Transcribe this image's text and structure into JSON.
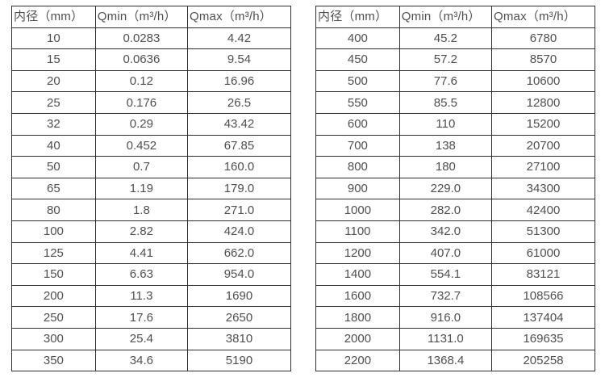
{
  "colors": {
    "background": "#ffffff",
    "border": "#2e2e2e",
    "text": "#4f4f4f"
  },
  "tables": [
    {
      "headers": [
        "内径（mm）",
        "Qmin（m³/h）",
        "Qmax（m³/h）"
      ],
      "rows": [
        [
          "10",
          "0.0283",
          "4.42"
        ],
        [
          "15",
          "0.0636",
          "9.54"
        ],
        [
          "20",
          "0.12",
          "16.96"
        ],
        [
          "25",
          "0.176",
          "26.5"
        ],
        [
          "32",
          "0.29",
          "43.42"
        ],
        [
          "40",
          "0.452",
          "67.85"
        ],
        [
          "50",
          "0.7",
          "160.0"
        ],
        [
          "65",
          "1.19",
          "179.0"
        ],
        [
          "80",
          "1.8",
          "271.0"
        ],
        [
          "100",
          "2.82",
          "424.0"
        ],
        [
          "125",
          "4.41",
          "662.0"
        ],
        [
          "150",
          "6.63",
          "954.0"
        ],
        [
          "200",
          "11.3",
          "1690"
        ],
        [
          "250",
          "17.6",
          "2650"
        ],
        [
          "300",
          "25.4",
          "3810"
        ],
        [
          "350",
          "34.6",
          "5190"
        ]
      ]
    },
    {
      "headers": [
        "内径（mm）",
        "Qmin（m³/h）",
        "Qmax（m³/h）"
      ],
      "rows": [
        [
          "400",
          "45.2",
          "6780"
        ],
        [
          "450",
          "57.2",
          "8570"
        ],
        [
          "500",
          "77.6",
          "10600"
        ],
        [
          "550",
          "85.5",
          "12800"
        ],
        [
          "600",
          "110",
          "15200"
        ],
        [
          "700",
          "138",
          "20700"
        ],
        [
          "800",
          "180",
          "27100"
        ],
        [
          "900",
          "229.0",
          "34300"
        ],
        [
          "1000",
          "282.0",
          "42400"
        ],
        [
          "1100",
          "342.0",
          "51300"
        ],
        [
          "1200",
          "407.0",
          "61000"
        ],
        [
          "1400",
          "554.1",
          "83121"
        ],
        [
          "1600",
          "732.7",
          "108566"
        ],
        [
          "1800",
          "916.0",
          "137404"
        ],
        [
          "2000",
          "1131.0",
          "169635"
        ],
        [
          "2200",
          "1368.4",
          "205258"
        ]
      ]
    }
  ]
}
